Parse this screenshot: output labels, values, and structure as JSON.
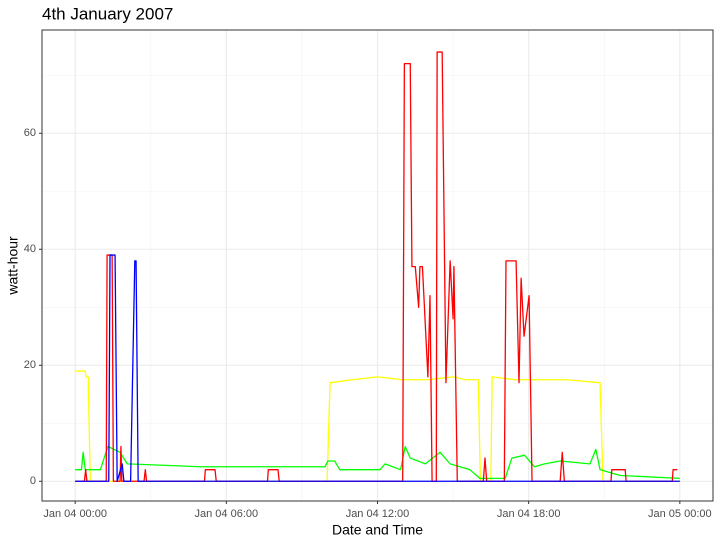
{
  "chart_data": {
    "type": "line",
    "title": "4th January 2007",
    "xlabel": "Date and Time",
    "ylabel": "watt-hour",
    "xlim": [
      "Jan 03 22:41",
      "Jan 05 01:19"
    ],
    "xticks": [
      "Jan 04 00:00",
      "Jan 04 06:00",
      "Jan 04 12:00",
      "Jan 04 18:00",
      "Jan 05 00:00"
    ],
    "ylim": [
      -3.4,
      77.8
    ],
    "yticks": [
      0,
      20,
      40,
      60
    ],
    "grid": true,
    "series": [
      {
        "color": "#ffff00",
        "x": [
          "Jan 04 00:00",
          "Jan 04 00:24",
          "Jan 04 00:26",
          "Jan 04 00:31",
          "Jan 04 00:36",
          "Jan 04 10:00",
          "Jan 04 10:07",
          "Jan 04 11:00",
          "Jan 04 12:00",
          "Jan 04 13:00",
          "Jan 04 14:00",
          "Jan 04 15:00",
          "Jan 04 15:30",
          "Jan 04 16:00",
          "Jan 04 16:05",
          "Jan 04 16:30",
          "Jan 04 16:33",
          "Jan 04 17:30",
          "Jan 04 18:30",
          "Jan 04 19:30",
          "Jan 04 20:50",
          "Jan 04 20:57",
          "Jan 05 00:00"
        ],
        "values": [
          19,
          19,
          18,
          18,
          0,
          0,
          17,
          17.5,
          18,
          17.5,
          17.5,
          18,
          17.5,
          17.5,
          0,
          0,
          18,
          17.5,
          17.5,
          17.5,
          17,
          0,
          0
        ]
      },
      {
        "color": "#00ff00",
        "x": [
          "Jan 04 00:00",
          "Jan 04 00:15",
          "Jan 04 00:19",
          "Jan 04 00:24",
          "Jan 04 01:00",
          "Jan 04 01:18",
          "Jan 04 01:47",
          "Jan 04 02:04",
          "Jan 04 05:00",
          "Jan 04 09:55",
          "Jan 04 10:02",
          "Jan 04 10:18",
          "Jan 04 10:30",
          "Jan 04 12:06",
          "Jan 04 12:18",
          "Jan 04 12:55",
          "Jan 04 13:06",
          "Jan 04 13:18",
          "Jan 04 13:54",
          "Jan 04 14:29",
          "Jan 04 14:53",
          "Jan 04 15:40",
          "Jan 04 16:04",
          "Jan 04 17:04",
          "Jan 04 17:20",
          "Jan 04 17:50",
          "Jan 04 18:14",
          "Jan 04 18:38",
          "Jan 04 19:15",
          "Jan 04 20:26",
          "Jan 04 20:40",
          "Jan 04 20:50",
          "Jan 04 21:38",
          "Jan 05 00:00"
        ],
        "values": [
          2,
          2,
          5,
          2,
          2,
          6,
          5,
          3,
          2.5,
          2.5,
          3.5,
          3.5,
          2,
          2,
          3,
          2,
          6,
          4,
          3,
          5,
          3,
          2,
          0.5,
          0.5,
          4,
          4.5,
          2.5,
          3,
          3.5,
          3,
          5.5,
          2,
          1,
          0.5
        ]
      },
      {
        "color": "#ff0000",
        "x": [
          "Jan 04 00:00",
          "Jan 04 00:22",
          "Jan 04 00:25",
          "Jan 04 00:28",
          "Jan 04 01:14",
          "Jan 04 01:16",
          "Jan 04 01:28",
          "Jan 04 01:31",
          "Jan 04 01:47",
          "Jan 04 01:49",
          "Jan 04 01:51",
          "Jan 04 02:44",
          "Jan 04 02:47",
          "Jan 04 02:50",
          "Jan 04 05:08",
          "Jan 04 05:10",
          "Jan 04 05:33",
          "Jan 04 05:36",
          "Jan 04 07:38",
          "Jan 04 07:40",
          "Jan 04 08:03",
          "Jan 04 08:06",
          "Jan 04 13:00",
          "Jan 04 13:04",
          "Jan 04 13:18",
          "Jan 04 13:22",
          "Jan 04 13:30",
          "Jan 04 13:38",
          "Jan 04 13:41",
          "Jan 04 13:47",
          "Jan 04 14:00",
          "Jan 04 14:05",
          "Jan 04 14:10",
          "Jan 04 14:20",
          "Jan 04 14:22",
          "Jan 04 14:34",
          "Jan 04 14:43",
          "Jan 04 14:53",
          "Jan 04 15:00",
          "Jan 04 15:02",
          "Jan 04 15:10",
          "Jan 04 16:12",
          "Jan 04 16:16",
          "Jan 04 16:20",
          "Jan 04 17:02",
          "Jan 04 17:06",
          "Jan 04 17:30",
          "Jan 04 17:37",
          "Jan 04 17:42",
          "Jan 04 17:49",
          "Jan 04 18:01",
          "Jan 04 18:08",
          "Jan 04 19:15",
          "Jan 04 19:20",
          "Jan 04 19:25",
          "Jan 04 21:16",
          "Jan 04 21:18",
          "Jan 04 21:50",
          "Jan 04 21:52",
          "Jan 04 23:42",
          "Jan 04 23:44",
          "Jan 04 23:54"
        ],
        "values": [
          0,
          0,
          2,
          0,
          0,
          39,
          39,
          0,
          0,
          6,
          0,
          0,
          2,
          0,
          0,
          2,
          2,
          0,
          0,
          2,
          2,
          0,
          0,
          72,
          72,
          37,
          37,
          30,
          37,
          37,
          18,
          32,
          0,
          0,
          74,
          74,
          17,
          38,
          28,
          37,
          0,
          0,
          4,
          0,
          0,
          38,
          38,
          17,
          35,
          25,
          32,
          0,
          0,
          5,
          0,
          0,
          2,
          2,
          0,
          0,
          2,
          2
        ]
      },
      {
        "color": "#0000ff",
        "x": [
          "Jan 04 00:00",
          "Jan 04 01:20",
          "Jan 04 01:23",
          "Jan 04 01:35",
          "Jan 04 01:40",
          "Jan 04 01:52",
          "Jan 04 01:56",
          "Jan 04 02:12",
          "Jan 04 02:22",
          "Jan 04 02:25",
          "Jan 04 02:30",
          "Jan 05 00:00"
        ],
        "values": [
          0,
          0,
          39,
          39,
          0,
          3,
          0,
          0,
          38,
          38,
          0,
          0
        ]
      }
    ]
  }
}
